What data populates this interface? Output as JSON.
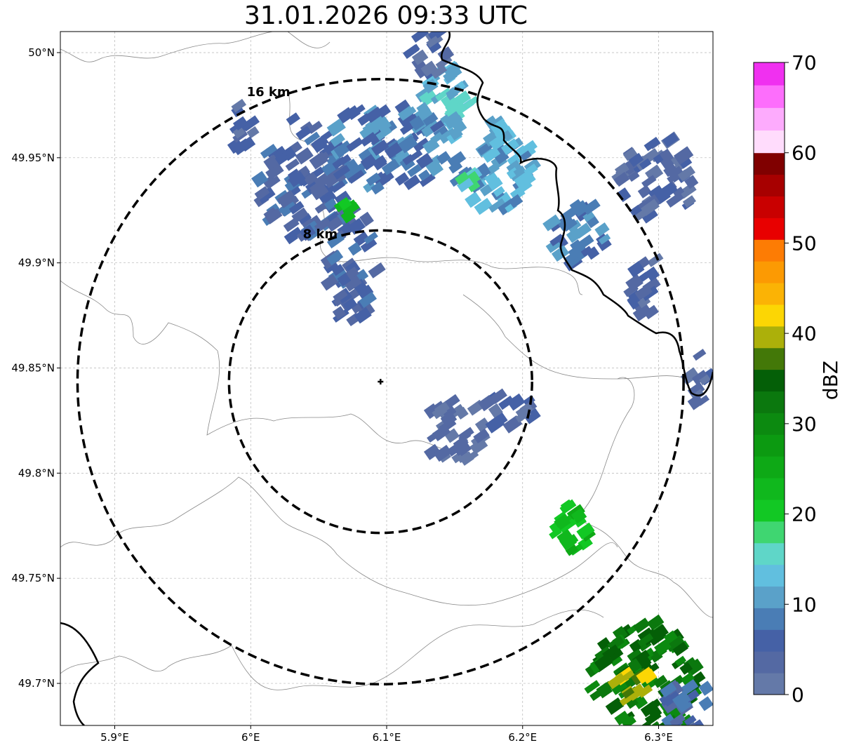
{
  "title": "31.01.2026 09:33 UTC",
  "map": {
    "lon_range": [
      5.86,
      6.34
    ],
    "lat_range": [
      49.68,
      50.01
    ],
    "lon_ticks": [
      {
        "value": 5.9,
        "label": "5.9°E"
      },
      {
        "value": 6.0,
        "label": "6°E"
      },
      {
        "value": 6.1,
        "label": "6.1°E"
      },
      {
        "value": 6.2,
        "label": "6.2°E"
      },
      {
        "value": 6.3,
        "label": "6.3°E"
      }
    ],
    "lat_ticks": [
      {
        "value": 50.0,
        "label": "50°N"
      },
      {
        "value": 49.95,
        "label": "49.95°N"
      },
      {
        "value": 49.9,
        "label": "49.9°N"
      },
      {
        "value": 49.85,
        "label": "49.85°N"
      },
      {
        "value": 49.8,
        "label": "49.8°N"
      },
      {
        "value": 49.75,
        "label": "49.75°N"
      },
      {
        "value": 49.7,
        "label": "49.7°N"
      }
    ],
    "grid": true,
    "radar_site": {
      "lon": 6.0955,
      "lat": 49.8435
    },
    "range_rings": [
      {
        "km": 8,
        "label": "8 km"
      },
      {
        "km": 16,
        "label": "16 km"
      }
    ]
  },
  "colorbar": {
    "label": "dBZ",
    "min": 0,
    "max": 70,
    "ticks": [
      "0",
      "10",
      "20",
      "30",
      "40",
      "50",
      "60",
      "70"
    ],
    "colors": [
      "#6479a8",
      "#5469a3",
      "#4561a6",
      "#4a7db5",
      "#5aa1c9",
      "#61bfdf",
      "#5fd6c8",
      "#3fd671",
      "#12c824",
      "#10b81d",
      "#0ea916",
      "#0c9a11",
      "#0c8a10",
      "#0b780e",
      "#045f07",
      "#437808",
      "#acb00a",
      "#fcd604",
      "#fbb305",
      "#fc9a03",
      "#fd7c04",
      "#e80000",
      "#c90000",
      "#a70000",
      "#800000",
      "#ffdcfc",
      "#fdabfd",
      "#fd6efc",
      "#f030f0"
    ]
  },
  "echoes": [
    {
      "lon": 6.04,
      "lat": 49.94,
      "rx": 0.035,
      "ry": 0.03,
      "level": 2
    },
    {
      "lon": 6.1,
      "lat": 49.955,
      "rx": 0.05,
      "ry": 0.02,
      "level": 3
    },
    {
      "lon": 6.145,
      "lat": 49.975,
      "rx": 0.02,
      "ry": 0.018,
      "level": 5
    },
    {
      "lon": 6.075,
      "lat": 49.9,
      "rx": 0.018,
      "ry": 0.03,
      "level": 2
    },
    {
      "lon": 6.18,
      "lat": 49.945,
      "rx": 0.03,
      "ry": 0.022,
      "level": 4
    },
    {
      "lon": 6.24,
      "lat": 49.915,
      "rx": 0.022,
      "ry": 0.015,
      "level": 3
    },
    {
      "lon": 6.3,
      "lat": 49.94,
      "rx": 0.028,
      "ry": 0.02,
      "level": 1
    },
    {
      "lon": 6.29,
      "lat": 49.89,
      "rx": 0.012,
      "ry": 0.015,
      "level": 1
    },
    {
      "lon": 6.13,
      "lat": 50.0,
      "rx": 0.015,
      "ry": 0.012,
      "level": 1
    },
    {
      "lon": 5.995,
      "lat": 49.965,
      "rx": 0.01,
      "ry": 0.012,
      "level": 1
    },
    {
      "lon": 6.15,
      "lat": 49.82,
      "rx": 0.025,
      "ry": 0.015,
      "level": 0
    },
    {
      "lon": 6.19,
      "lat": 49.83,
      "rx": 0.02,
      "ry": 0.008,
      "level": 1
    },
    {
      "lon": 6.24,
      "lat": 49.775,
      "rx": 0.018,
      "ry": 0.012,
      "level": 9
    },
    {
      "lon": 6.29,
      "lat": 49.7,
      "rx": 0.04,
      "ry": 0.03,
      "level": 13
    },
    {
      "lon": 6.28,
      "lat": 49.7,
      "rx": 0.015,
      "ry": 0.008,
      "level": 16
    },
    {
      "lon": 6.32,
      "lat": 49.69,
      "rx": 0.02,
      "ry": 0.012,
      "level": 2
    },
    {
      "lon": 6.33,
      "lat": 49.845,
      "rx": 0.008,
      "ry": 0.012,
      "level": 1
    },
    {
      "lon": 6.07,
      "lat": 49.925,
      "rx": 0.006,
      "ry": 0.004,
      "level": 8
    },
    {
      "lon": 6.16,
      "lat": 49.94,
      "rx": 0.01,
      "ry": 0.006,
      "level": 6
    }
  ]
}
